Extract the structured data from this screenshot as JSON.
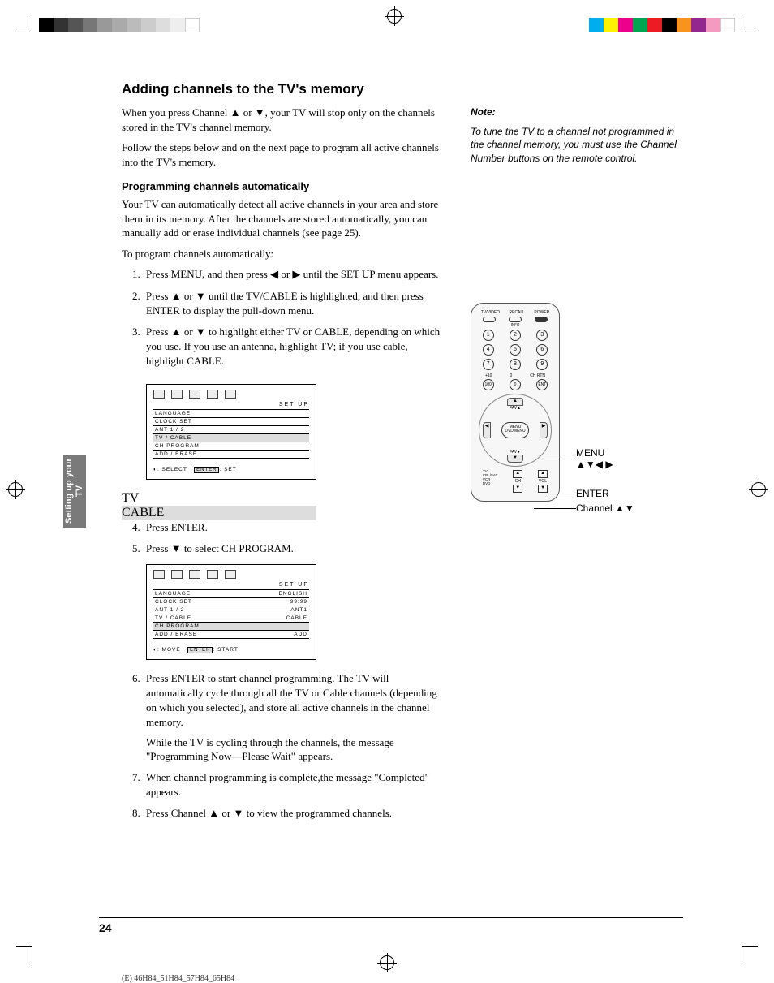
{
  "colorbar_top_left": [
    "#000000",
    "#333333",
    "#555555",
    "#777777",
    "#999999",
    "#aaaaaa",
    "#bbbbbb",
    "#cccccc",
    "#dddddd",
    "#eeeeee",
    "#ffffff"
  ],
  "colorbar_top_right": [
    "#00aeef",
    "#fff200",
    "#ec008c",
    "#00a651",
    "#ed1c24",
    "#000000",
    "#f7941d",
    "#92278f",
    "#f49ac1",
    "#ffffff"
  ],
  "side_tab": "Setting up your TV",
  "title": "Adding channels to the TV's memory",
  "intro1": "When you press Channel ▲ or ▼, your TV will stop only on the channels stored in the TV's channel memory.",
  "intro2": "Follow the steps below and on the next page to program all active channels into the TV's memory.",
  "subhead": "Programming channels automatically",
  "para1": "Your TV can automatically detect all active channels in your area and store them in its memory. After the channels are stored automatically, you can manually add or erase individual channels (see page 25).",
  "para2": "To program channels automatically:",
  "steps_a": [
    "Press MENU, and then press ◀ or ▶ until the SET UP menu appears.",
    "Press ▲ or ▼ until the TV/CABLE is highlighted, and then press ENTER to display the pull-down menu.",
    "Press ▲ or ▼ to highlight either TV or CABLE, depending on which you use. If you use an antenna, highlight TV; if you use cable, highlight CABLE."
  ],
  "steps_b_start": 4,
  "steps_b": [
    "Press ENTER.",
    "Press ▼ to select CH PROGRAM."
  ],
  "steps_c_start": 6,
  "steps_c": [
    "Press ENTER to start channel programming. The TV will automatically cycle through all the TV or Cable channels (depending on which you selected), and store all active channels in the channel memory.",
    "When channel programming is complete,the message \"Completed\" appears.",
    "Press Channel ▲ or ▼ to view the programmed channels."
  ],
  "step6_sub": "While the TV is cycling through the channels, the message \"Programming Now—Please Wait\" appears.",
  "note_title": "Note:",
  "note_body": "To tune the TV to a channel not programmed in the channel memory, you must use the Channel Number buttons on the remote control.",
  "osd1": {
    "title": "SET UP",
    "rows": [
      {
        "l": "LANGUAGE",
        "r": "",
        "hl": false
      },
      {
        "l": "CLOCK SET",
        "r": "",
        "hl": false
      },
      {
        "l": "ANT 1 / 2",
        "r": "",
        "hl": false
      },
      {
        "l": "TV / CABLE",
        "r": "",
        "hl": true
      },
      {
        "l": "CH PROGRAM",
        "r": "",
        "hl": false
      },
      {
        "l": "ADD / ERASE",
        "r": "",
        "hl": false
      }
    ],
    "popup": [
      "TV",
      "CABLE"
    ],
    "foot_l": ": SELECT",
    "foot_btn": "ENTER",
    "foot_r": ": SET"
  },
  "osd2": {
    "title": "SET UP",
    "rows": [
      {
        "l": "LANGUAGE",
        "r": "ENGLISH",
        "hl": false
      },
      {
        "l": "CLOCK SET",
        "r": "99:99",
        "hl": false
      },
      {
        "l": "ANT 1 / 2",
        "r": "ANT1",
        "hl": false
      },
      {
        "l": "TV / CABLE",
        "r": "CABLE",
        "hl": false
      },
      {
        "l": "CH PROGRAM",
        "r": "",
        "hl": true
      },
      {
        "l": "ADD / ERASE",
        "r": "ADD",
        "hl": false
      }
    ],
    "foot_l": ": MOVE",
    "foot_btn": "ENTER",
    "foot_r": ": START"
  },
  "remote": {
    "top_labels": [
      "TV/VIDEO",
      "RECALL",
      "POWER"
    ],
    "info_label": "INFO",
    "numbers": [
      "1",
      "2",
      "3",
      "4",
      "5",
      "6",
      "7",
      "8",
      "9"
    ],
    "bottom_row_labels": [
      "+10",
      "0",
      "CH RTN"
    ],
    "bottom_row_vals": [
      "100",
      "0",
      "ENT"
    ],
    "menu_label": "MENU\nDVDMENU",
    "fav_up": "FAV▲",
    "fav_dn": "FAV▼",
    "bottom_group_left": "TV\nCBL/SAT\nVCR\nDVD",
    "ch_label": "CH",
    "vol_label": "VOL"
  },
  "callouts": {
    "menu": "MENU",
    "arrows": "▲▼◀ ▶",
    "enter": "ENTER",
    "channel": "Channel ▲▼"
  },
  "page_number": "24",
  "footer": "(E) 46H84_51H84_57H84_65H84"
}
